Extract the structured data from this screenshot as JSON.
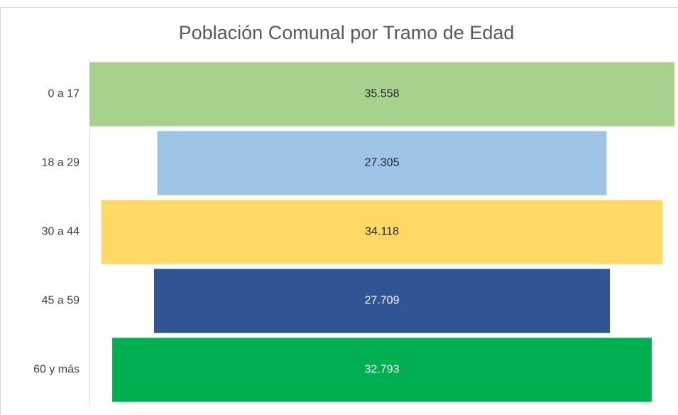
{
  "chart_data": {
    "type": "funnel",
    "title": "Población Comunal por Tramo de Edad",
    "categories": [
      "0 a 17",
      "18 a 29",
      "30 a 44",
      "45 a 59",
      "60 y más"
    ],
    "values": [
      35558,
      27305,
      34118,
      27709,
      32793
    ],
    "value_labels": [
      "35.558",
      "27.305",
      "34.118",
      "27.709",
      "32.793"
    ],
    "colors": [
      "#a9d18e",
      "#9dc3e6",
      "#ffd966",
      "#2f5597",
      "#00b050"
    ]
  }
}
